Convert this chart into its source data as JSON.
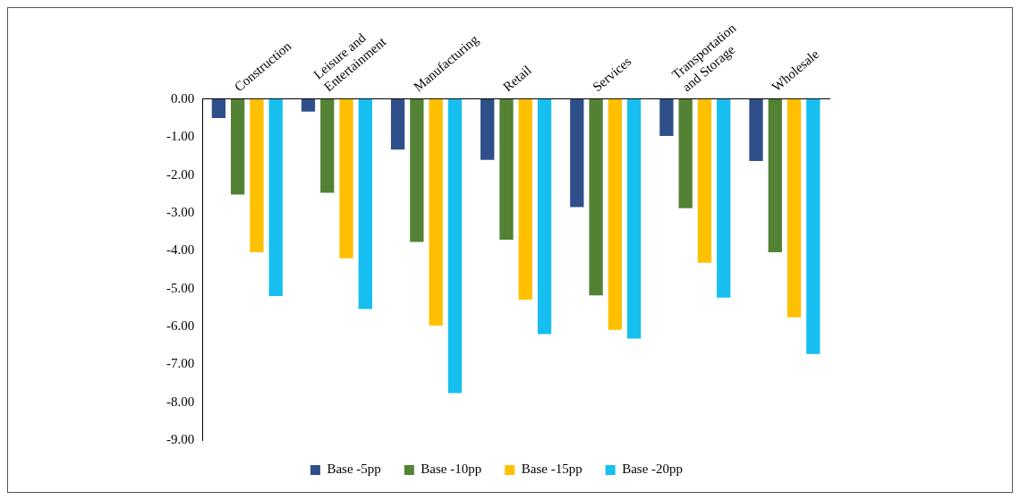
{
  "chart_data": {
    "type": "bar",
    "categories": [
      "Construction",
      "Leisure and Entertainment",
      "Manufacturing",
      "Retail",
      "Services",
      "Transportation and Storage",
      "Wholesale"
    ],
    "series": [
      {
        "name": "Base -5pp",
        "color": "#2e4f8a",
        "values": [
          -0.5,
          -0.33,
          -1.33,
          -1.6,
          -2.85,
          -0.97,
          -1.63
        ]
      },
      {
        "name": "Base -10pp",
        "color": "#548235",
        "values": [
          -2.52,
          -2.47,
          -3.77,
          -3.71,
          -5.18,
          -2.88,
          -4.04
        ]
      },
      {
        "name": "Base -15pp",
        "color": "#ffc000",
        "values": [
          -4.04,
          -4.2,
          -5.98,
          -5.29,
          -6.09,
          -4.32,
          -5.76
        ]
      },
      {
        "name": "Base -20pp",
        "color": "#16bff0",
        "values": [
          -5.2,
          -5.54,
          -7.76,
          -6.2,
          -6.32,
          -5.24,
          -6.73
        ]
      }
    ],
    "ylim": [
      -9,
      0
    ],
    "yticks": [
      {
        "value": 0,
        "label": "0.00"
      },
      {
        "value": -1,
        "label": "-1.00"
      },
      {
        "value": -2,
        "label": "-2.00"
      },
      {
        "value": -3,
        "label": "-3.00"
      },
      {
        "value": -4,
        "label": "-4.00"
      },
      {
        "value": -5,
        "label": "-5.00"
      },
      {
        "value": -6,
        "label": "-6.00"
      },
      {
        "value": -7,
        "label": "-7.00"
      },
      {
        "value": -8,
        "label": "-8.00"
      },
      {
        "value": -9,
        "label": "-9.00"
      }
    ],
    "grid": false,
    "legend": "bottom"
  }
}
